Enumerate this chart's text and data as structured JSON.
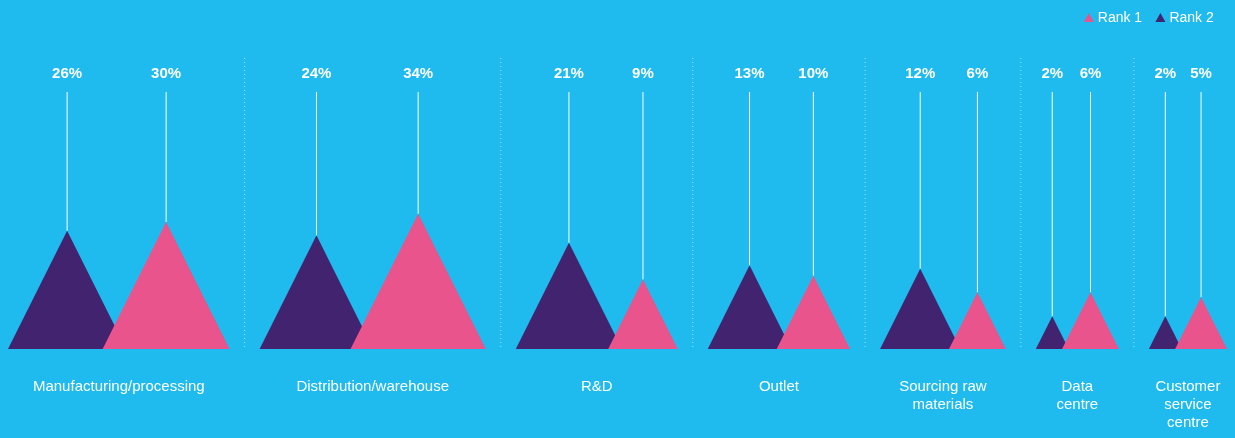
{
  "chart_data": {
    "type": "other",
    "legend": "top right",
    "categories": [
      "Manufacturing/processing",
      "Distribution/warehouse",
      "R&D",
      "Outlet",
      "Sourcing raw materials",
      "Data centre",
      "Customer service centre"
    ],
    "series": [
      {
        "name": "Rank 1",
        "color": "#ea548c",
        "values": [
          30,
          34,
          9,
          10,
          6,
          6,
          5
        ],
        "value_labels": [
          "30%",
          "34%",
          "9%",
          "10%",
          "6%",
          "6%",
          "5%"
        ]
      },
      {
        "name": "Rank 2",
        "color": "#42236f",
        "values": [
          26,
          24,
          21,
          13,
          12,
          2,
          2
        ],
        "value_labels": [
          "26%",
          "24%",
          "21%",
          "13%",
          "12%",
          "2%",
          "2%"
        ]
      }
    ]
  }
}
